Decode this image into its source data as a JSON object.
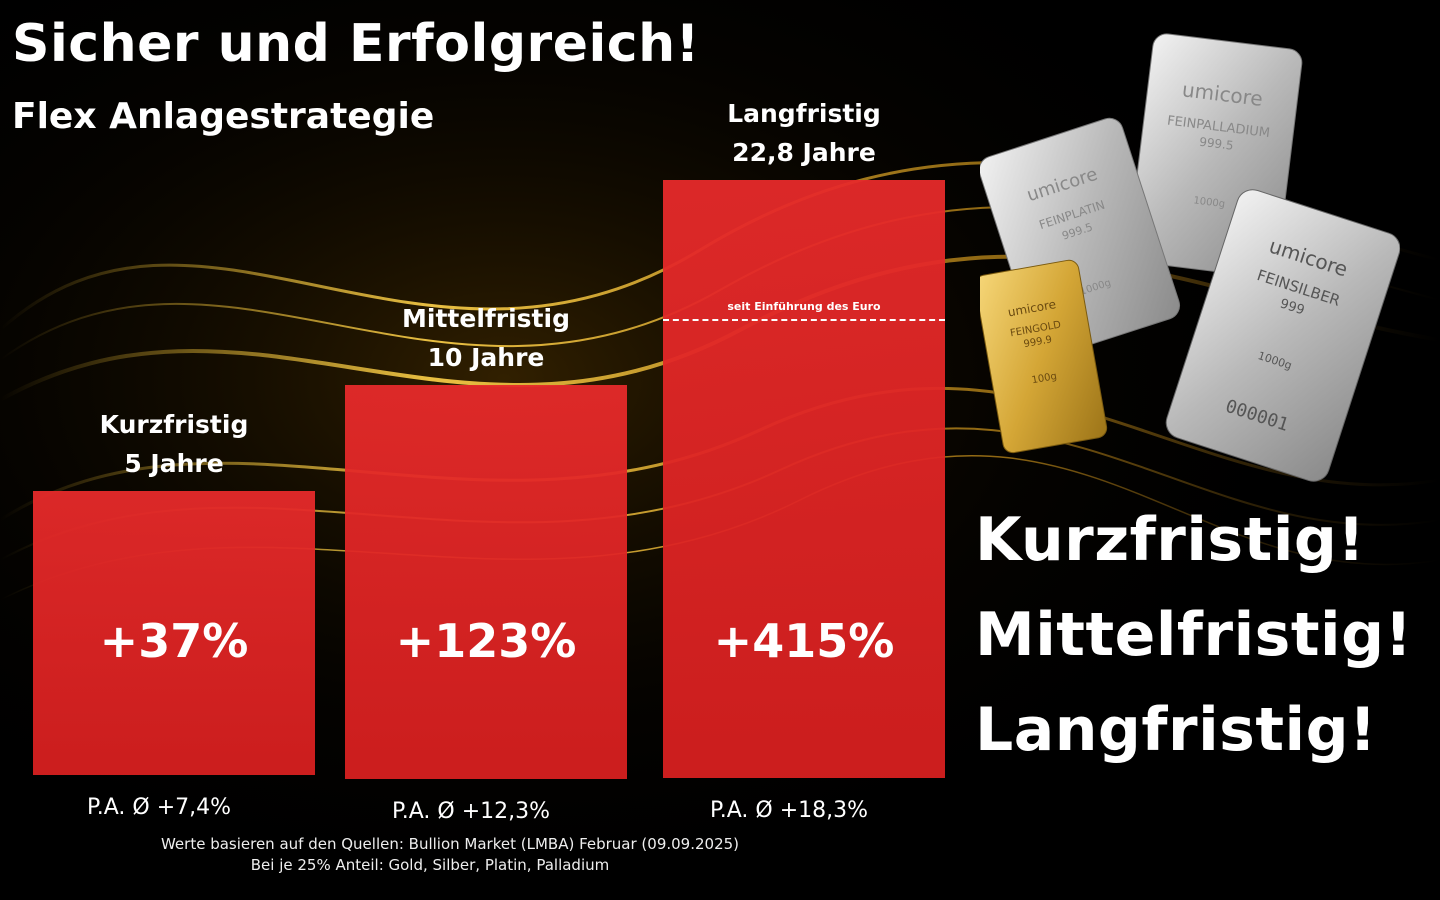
{
  "header": {
    "title": "Sicher und Erfolgreich!",
    "subtitle": "Flex Anlagestrategie"
  },
  "chart_data": {
    "type": "bar",
    "title": "Flex Anlagestrategie",
    "categories": [
      "Kurzfristig",
      "Mittelfristig",
      "Langfristig"
    ],
    "durations": [
      "5 Jahre",
      "10 Jahre",
      "22,8 Jahre"
    ],
    "values": [
      37,
      123,
      415
    ],
    "value_labels": [
      "+37%",
      "+123%",
      "+415%"
    ],
    "per_annum_labels": [
      "P.A. Ø +7,4%",
      "P.A. Ø +12,3%",
      "P.A. Ø +18,3%"
    ],
    "annotation": "seit Einführung des Euro",
    "unit": "%",
    "bar_color": "#e62a2a"
  },
  "slogans": [
    "Kurzfristig!",
    "Mittelfristig!",
    "Langfristig!"
  ],
  "footnotes": {
    "source": "Werte basieren auf den Quellen: Bullion Market (LMBA) Februar (09.09.2025)",
    "allocation": "Bei je 25% Anteil: Gold, Silber, Platin, Palladium"
  },
  "products": {
    "bars": [
      {
        "brand": "umicore",
        "metal": "FEINPALLADIUM",
        "purity": "999.5",
        "weight": "1000g"
      },
      {
        "brand": "umicore",
        "metal": "FEINPLATIN",
        "purity": "999.5",
        "weight": "1000g"
      },
      {
        "brand": "umicore",
        "metal": "FEINGOLD",
        "purity": "999.9",
        "weight": "100g"
      },
      {
        "brand": "umicore",
        "metal": "FEINSILBER",
        "purity": "999",
        "weight": "1000g"
      }
    ],
    "serial": "000001"
  }
}
